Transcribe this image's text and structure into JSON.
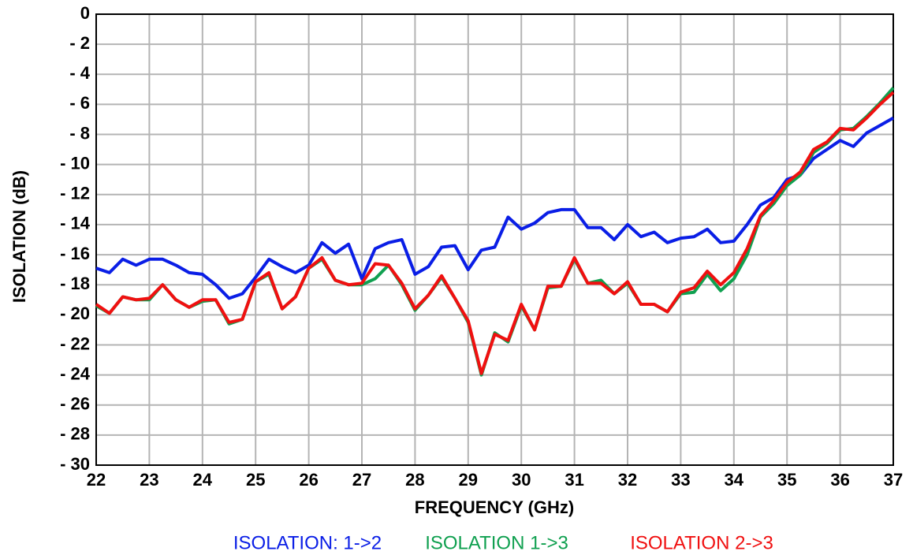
{
  "chart_data": {
    "type": "line",
    "x_label": "FREQUENCY (GHz)",
    "y_label": "ISOLATION (dB)",
    "x": [
      22,
      22.25,
      22.5,
      22.75,
      23,
      23.25,
      23.5,
      23.75,
      24,
      24.25,
      24.5,
      24.75,
      25,
      25.25,
      25.5,
      25.75,
      26,
      26.25,
      26.5,
      26.75,
      27,
      27.25,
      27.5,
      27.75,
      28,
      28.25,
      28.5,
      28.75,
      29,
      29.25,
      29.5,
      29.75,
      30,
      30.25,
      30.5,
      30.75,
      31,
      31.25,
      31.5,
      31.75,
      32,
      32.25,
      32.5,
      32.75,
      33,
      33.25,
      33.5,
      33.75,
      34,
      34.25,
      34.5,
      34.75,
      35,
      35.25,
      35.5,
      35.75,
      36,
      36.25,
      36.5,
      36.75,
      37
    ],
    "series": [
      {
        "name": "ISOLATION: 1->2",
        "color": "#0a1ee6",
        "values": [
          -16.9,
          -17.2,
          -16.3,
          -16.7,
          -16.3,
          -16.3,
          -16.7,
          -17.2,
          -17.3,
          -18.0,
          -18.9,
          -18.6,
          -17.5,
          -16.3,
          -16.8,
          -17.2,
          -16.7,
          -15.2,
          -15.9,
          -15.3,
          -17.6,
          -15.6,
          -15.2,
          -15.0,
          -17.3,
          -16.8,
          -15.5,
          -15.4,
          -17.0,
          -15.7,
          -15.5,
          -13.5,
          -14.3,
          -13.9,
          -13.2,
          -13.0,
          -13.0,
          -14.2,
          -14.2,
          -15.0,
          -14.0,
          -14.8,
          -14.5,
          -15.2,
          -14.9,
          -14.8,
          -14.3,
          -15.2,
          -15.1,
          -14.0,
          -12.7,
          -12.2,
          -11.0,
          -10.7,
          -9.6,
          -9.0,
          -8.4,
          -8.8,
          -7.9,
          -7.4,
          -6.9
        ]
      },
      {
        "name": "ISOLATION 1->3",
        "color": "#10a050",
        "values": [
          -19.4,
          -19.9,
          -18.8,
          -19.0,
          -19.0,
          -18.0,
          -19.0,
          -19.5,
          -19.1,
          -19.0,
          -20.6,
          -20.3,
          -17.8,
          -17.3,
          -19.6,
          -18.8,
          -16.9,
          -16.3,
          -17.7,
          -18.0,
          -18.0,
          -17.6,
          -16.7,
          -18.0,
          -19.7,
          -18.7,
          -17.5,
          -18.9,
          -20.5,
          -24.0,
          -21.2,
          -21.8,
          -19.4,
          -21.0,
          -18.2,
          -18.1,
          -16.3,
          -17.9,
          -17.7,
          -18.6,
          -17.9,
          -19.3,
          -19.3,
          -19.8,
          -18.6,
          -18.5,
          -17.3,
          -18.4,
          -17.6,
          -16.0,
          -13.5,
          -12.6,
          -11.4,
          -10.7,
          -9.2,
          -8.6,
          -7.7,
          -7.6,
          -6.8,
          -5.9,
          -4.9
        ]
      },
      {
        "name": "ISOLATION 2->3",
        "color": "#f01010",
        "values": [
          -19.3,
          -19.9,
          -18.8,
          -19.0,
          -18.9,
          -18.0,
          -19.0,
          -19.5,
          -19.0,
          -19.0,
          -20.5,
          -20.3,
          -17.8,
          -17.2,
          -19.6,
          -18.8,
          -16.9,
          -16.2,
          -17.7,
          -18.0,
          -17.9,
          -16.6,
          -16.7,
          -17.9,
          -19.6,
          -18.7,
          -17.4,
          -18.9,
          -20.4,
          -23.9,
          -21.3,
          -21.7,
          -19.3,
          -21.0,
          -18.1,
          -18.1,
          -16.2,
          -17.9,
          -17.9,
          -18.6,
          -17.8,
          -19.3,
          -19.3,
          -19.8,
          -18.5,
          -18.2,
          -17.1,
          -18.0,
          -17.2,
          -15.6,
          -13.4,
          -12.4,
          -11.2,
          -10.5,
          -9.0,
          -8.5,
          -7.6,
          -7.7,
          -6.9,
          -6.0,
          -5.2
        ]
      }
    ],
    "xlim": [
      22,
      37
    ],
    "xticks": [
      22,
      23,
      24,
      25,
      26,
      27,
      28,
      29,
      30,
      31,
      32,
      33,
      34,
      35,
      36,
      37
    ],
    "ylim": [
      -30,
      0
    ],
    "yticks": [
      {
        "value": -30,
        "label": "- 30"
      },
      {
        "value": -28,
        "label": "- 28"
      },
      {
        "value": -26,
        "label": "- 26"
      },
      {
        "value": -24,
        "label": "- 24"
      },
      {
        "value": -22,
        "label": "- 22"
      },
      {
        "value": -20,
        "label": "- 20"
      },
      {
        "value": -18,
        "label": "- 18"
      },
      {
        "value": -16,
        "label": "- 16"
      },
      {
        "value": -14,
        "label": "- 14"
      },
      {
        "value": -12,
        "label": "- 12"
      },
      {
        "value": -10,
        "label": "- 10"
      },
      {
        "value": -8,
        "label": "- 8"
      },
      {
        "value": -6,
        "label": "- 6"
      },
      {
        "value": -4,
        "label": "- 4"
      },
      {
        "value": -2,
        "label": "- 2"
      },
      0
    ],
    "grid": true
  }
}
